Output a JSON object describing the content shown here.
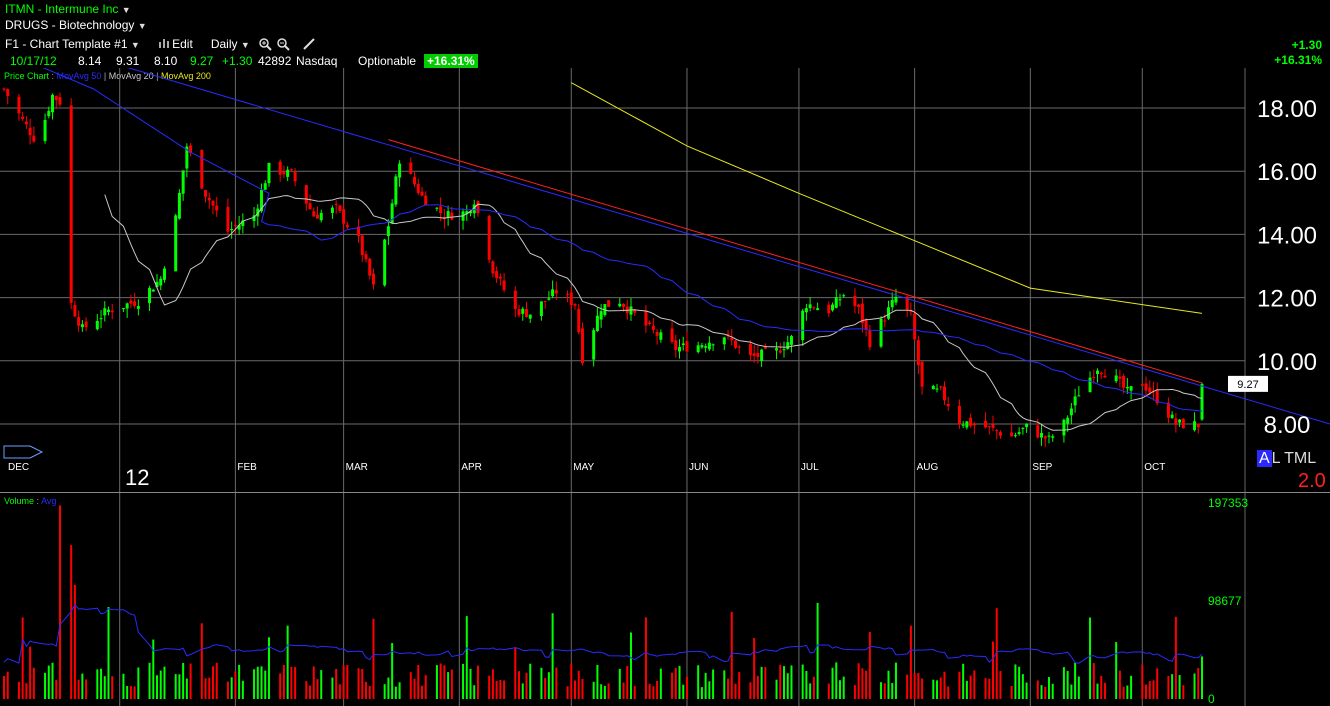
{
  "header": {
    "ticker": "ITMN",
    "company": "Intermune Inc",
    "sector": "DRUGS - Biotechnology",
    "template": "F1 - Chart Template #1",
    "edit_label": "Edit",
    "interval": "Daily",
    "change_abs": "+1.30",
    "change_pct": "+16.31%"
  },
  "quote": {
    "date": "10/17/12",
    "open": "8.14",
    "high": "9.31",
    "low": "8.10",
    "last": "9.27",
    "change": "+1.30",
    "volume": "42892",
    "exchange": "Nasdaq",
    "optionable": "Optionable",
    "change_pct": "+16.31%"
  },
  "legend": {
    "price": "Price Chart",
    "ma50": "MovAvg 50",
    "ma20": "MovAvg 20",
    "ma200": "MovAvg 200",
    "volume": "Volume",
    "vol_avg": "Avg"
  },
  "labels": {
    "al": "A",
    "tml": "L TML",
    "ratio": "2.0",
    "year": "12",
    "last_price_tag": "9.27"
  },
  "colors": {
    "up": "#00ff00",
    "down": "#ff0000",
    "ma50": "#2a2aff",
    "ma20": "#c8c8c8",
    "ma200": "#e8e820",
    "trendline": "#ff2020",
    "grid": "#6a6a6a"
  },
  "chart_data": {
    "type": "candlestick",
    "y_axis": {
      "ticks": [
        "18.00",
        "16.00",
        "14.00",
        "12.00",
        "10.00",
        "8.00"
      ],
      "range": [
        7.0,
        19.2
      ]
    },
    "x_axis": {
      "months": [
        "DEC",
        "FEB",
        "MAR",
        "APR",
        "MAY",
        "JUN",
        "JUL",
        "AUG",
        "SEP",
        "OCT"
      ]
    },
    "monthly_closes_approx": [
      {
        "month": "DEC",
        "value": 18.3
      },
      {
        "month": "JAN",
        "value": 13.8
      },
      {
        "month": "FEB",
        "value": 14.8
      },
      {
        "month": "MAR",
        "value": 14.6
      },
      {
        "month": "APR",
        "value": 11.4
      },
      {
        "month": "MAY",
        "value": 10.9
      },
      {
        "month": "JUN",
        "value": 10.4
      },
      {
        "month": "JUL",
        "value": 11.4
      },
      {
        "month": "AUG",
        "value": 7.5
      },
      {
        "month": "SEP",
        "value": 9.3
      },
      {
        "month": "OCT",
        "value": 9.27
      }
    ],
    "ma200_approx": [
      {
        "date": "2012-05-01",
        "value": 18.8
      },
      {
        "date": "2012-06-01",
        "value": 16.8
      },
      {
        "date": "2012-07-01",
        "value": 15.3
      },
      {
        "date": "2012-08-01",
        "value": 13.8
      },
      {
        "date": "2012-09-01",
        "value": 12.3
      },
      {
        "date": "2012-10-17",
        "value": 11.5
      }
    ],
    "trendline": {
      "from": {
        "date": "2012-03-13",
        "value": 17.0
      },
      "to": {
        "date": "2012-10-17",
        "value": 9.3
      }
    },
    "volume_axis": {
      "ticks": [
        "197353",
        "98677",
        "0"
      ],
      "max": 197353
    }
  }
}
